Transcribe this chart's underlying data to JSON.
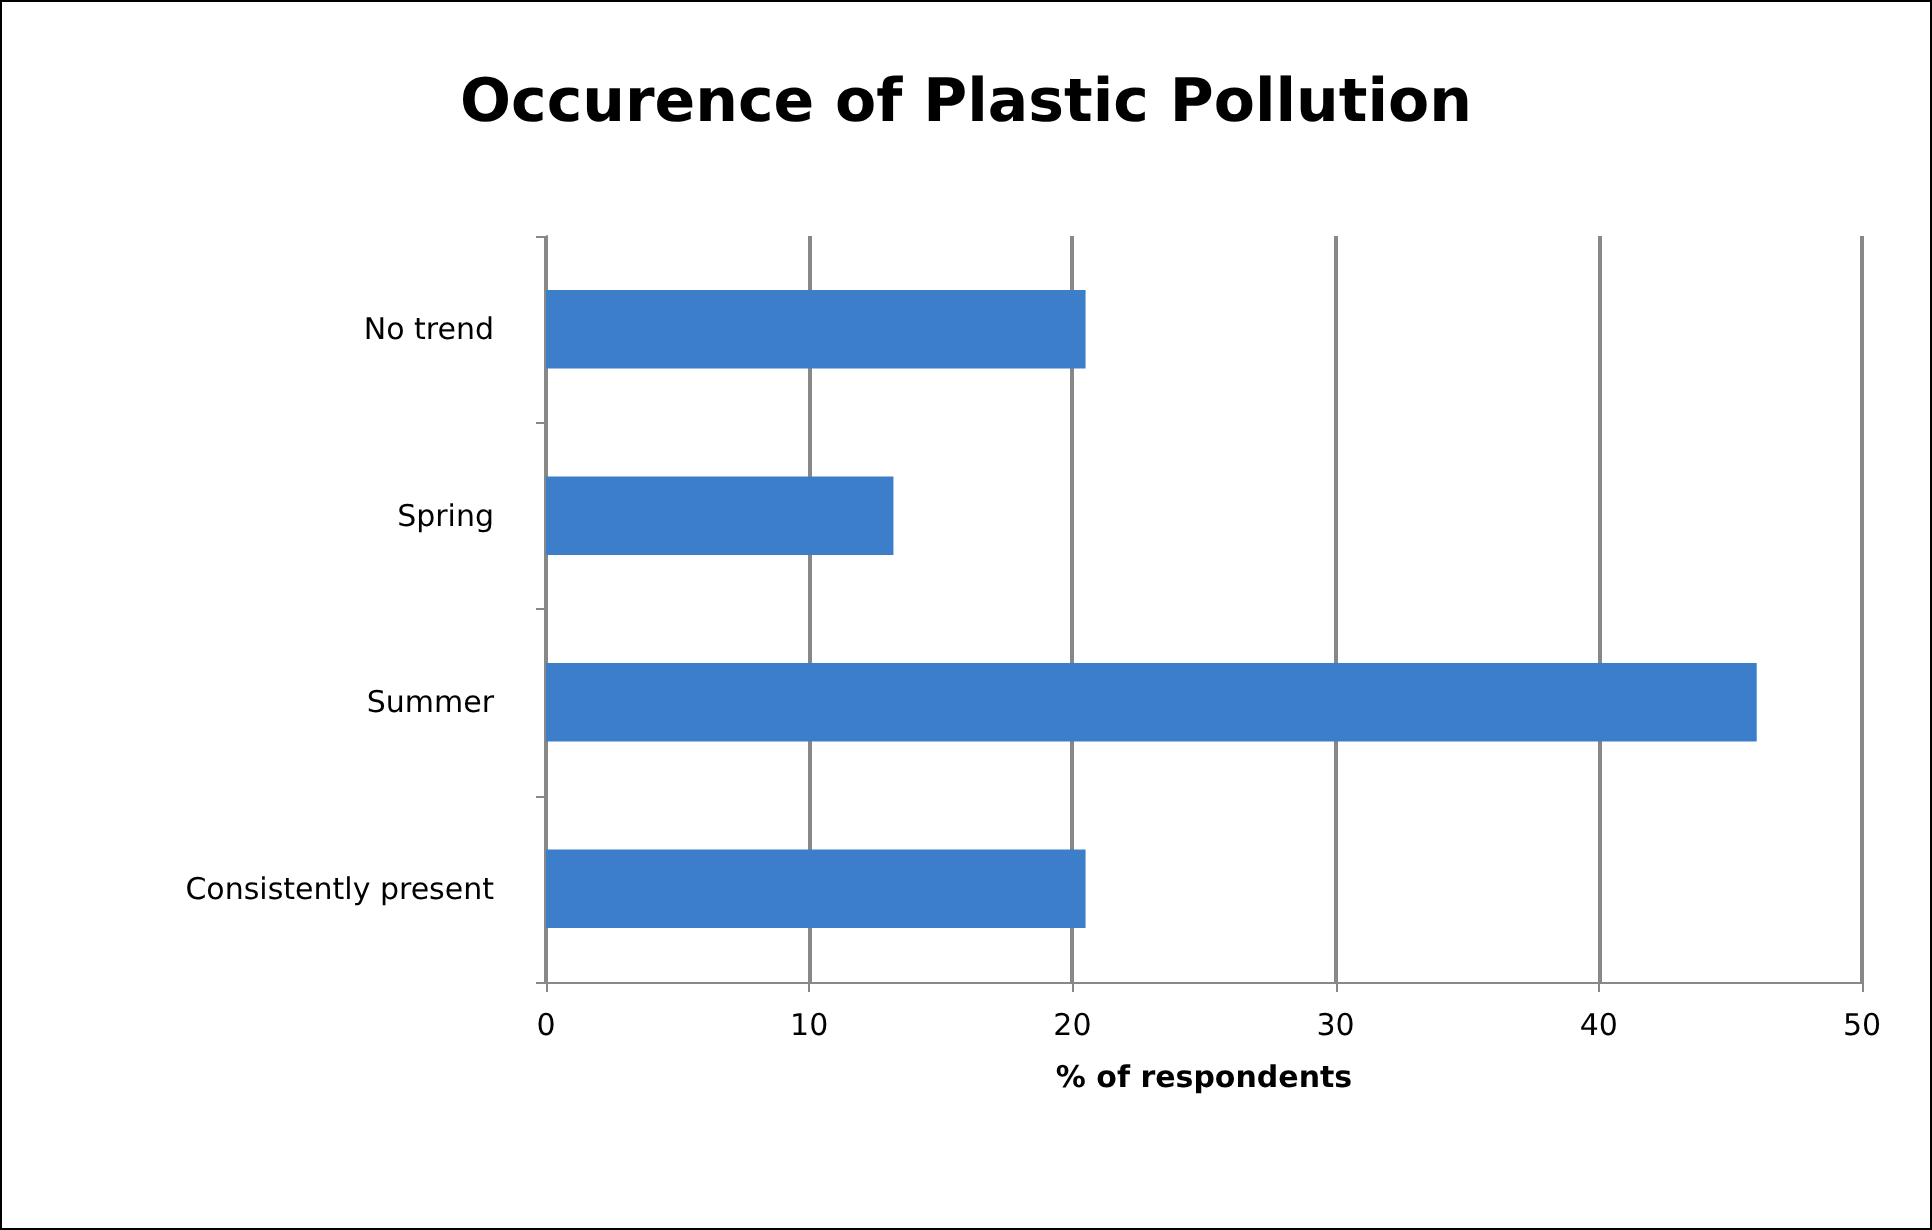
{
  "chart_data": {
    "type": "bar",
    "orientation": "horizontal",
    "title": "Occurence of Plastic Pollution",
    "xlabel": "% of respondents",
    "categories": [
      "No trend",
      "Spring",
      "Summer",
      "Consistently present"
    ],
    "values": [
      20.5,
      13.2,
      46.0,
      20.5
    ],
    "color": "#3d7ecb",
    "xlim": [
      0,
      50
    ],
    "xticks": [
      0,
      10,
      20,
      30,
      40,
      50
    ],
    "grid": "x"
  }
}
